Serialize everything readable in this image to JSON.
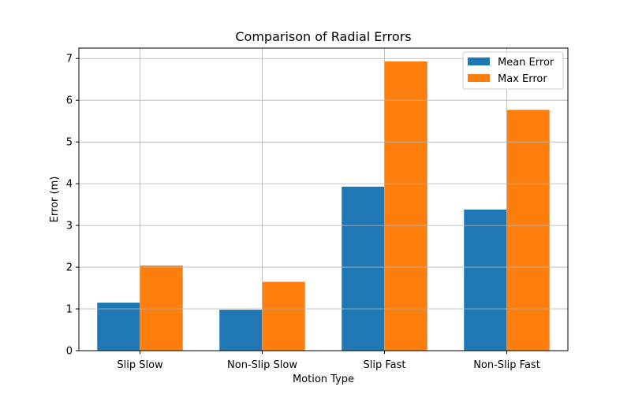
{
  "chart_data": {
    "type": "bar",
    "title": "Comparison of Radial Errors",
    "xlabel": "Motion Type",
    "ylabel": "Error (m)",
    "categories": [
      "Slip Slow",
      "Non-Slip Slow",
      "Slip Fast",
      "Non-Slip Fast"
    ],
    "series": [
      {
        "name": "Mean Error",
        "values": [
          1.15,
          0.98,
          3.93,
          3.38
        ],
        "color": "#1f77b4"
      },
      {
        "name": "Max Error",
        "values": [
          2.04,
          1.65,
          6.93,
          5.77
        ],
        "color": "#ff7f0e"
      }
    ],
    "ylim": [
      0,
      7.25
    ],
    "yticks": [
      0,
      1,
      2,
      3,
      4,
      5,
      6,
      7
    ],
    "grid": true,
    "legend_position": "top-right"
  }
}
